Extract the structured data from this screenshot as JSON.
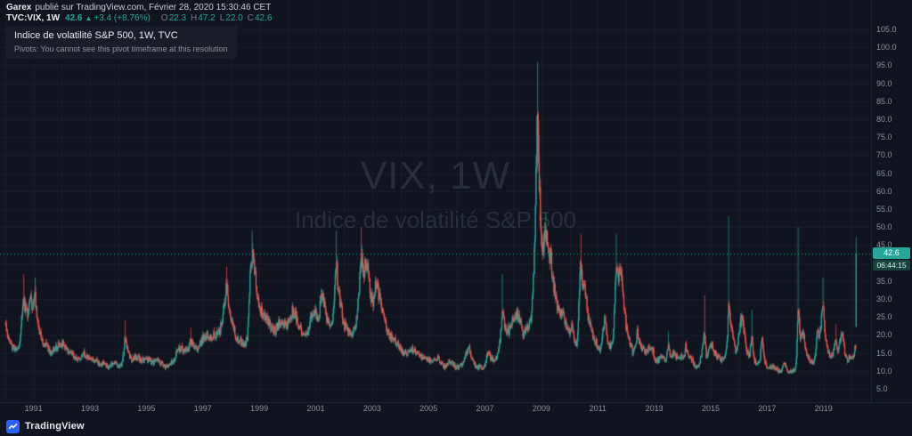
{
  "attribution": {
    "author": "Garex",
    "rest": "publié sur TradingView.com, Février 28, 2020 15:30:46 CET"
  },
  "symbol_line": {
    "symbol": "TVC:VIX, 1W",
    "price": "42.6",
    "arrow": "▲",
    "change": "+3.4 (+8.76%)",
    "ohlc": [
      {
        "label": "O",
        "value": "22.3"
      },
      {
        "label": "H",
        "value": "47.2"
      },
      {
        "label": "L",
        "value": "22.0"
      },
      {
        "label": "C",
        "value": "42.6"
      }
    ]
  },
  "legend": {
    "title": "Indice de volatilité S&P 500, 1W, TVC",
    "pivots_note": "Pivots: You cannot see this pivot timeframe at this resolution"
  },
  "watermark": {
    "line1": "VIX, 1W",
    "line2": "Indice de volatilité S&P 500"
  },
  "price_scale": {
    "ticks": [
      "105.0",
      "100.0",
      "95.0",
      "90.0",
      "85.0",
      "80.0",
      "75.0",
      "70.0",
      "65.0",
      "60.0",
      "55.0",
      "50.0",
      "45.0",
      "40.0",
      "35.0",
      "30.0",
      "25.0",
      "20.0",
      "15.0",
      "10.0",
      "5.0"
    ],
    "last_price_badge": "42.6",
    "countdown": "06:44:15"
  },
  "time_scale": {
    "ticks": [
      "1991",
      "1993",
      "1995",
      "1997",
      "1999",
      "2001",
      "2003",
      "2005",
      "2007",
      "2009",
      "2011",
      "2013",
      "2015",
      "2017",
      "2019"
    ]
  },
  "footer": {
    "brand": "TradingView"
  },
  "colors": {
    "background": "#0f141f",
    "up": "#26a69a",
    "down": "#ef5350",
    "axis_text": "#8b90a0",
    "badge_bg": "#26a69a",
    "badge_text": "#ffffff",
    "countdown_bg": "#17423d",
    "countdown_text": "#d8efec",
    "brand_blue": "#2962ff",
    "watermark": "rgba(197,203,217,0.14)",
    "grid": "rgba(255,255,255,0.04)",
    "border": "#1f2633",
    "header_text": "#c9ceda",
    "header_bright": "#e8eaf0",
    "legend_note": "#8d93a1"
  },
  "chart_data": {
    "type": "candlestick",
    "title": "Indice de volatilité S&P 500 (VIX), weekly",
    "timeframe": "1W",
    "x_range": [
      1990.0,
      2020.3
    ],
    "ylim": [
      5,
      105
    ],
    "y_tick_step": 5,
    "grid": true,
    "price_line": 42.6,
    "up_color": "#26a69a",
    "down_color": "#ef5350",
    "last_candle": {
      "t": 2020.155,
      "o": 22.3,
      "h": 47.2,
      "l": 22.0,
      "c": 42.6
    },
    "anchors": [
      [
        1990.0,
        23
      ],
      [
        1990.12,
        19
      ],
      [
        1990.25,
        17
      ],
      [
        1990.4,
        16
      ],
      [
        1990.5,
        17
      ],
      [
        1990.58,
        24
      ],
      [
        1990.65,
        30
      ],
      [
        1990.72,
        27
      ],
      [
        1990.8,
        26
      ],
      [
        1990.9,
        30
      ],
      [
        1991.0,
        27
      ],
      [
        1991.05,
        32
      ],
      [
        1991.15,
        24
      ],
      [
        1991.3,
        18
      ],
      [
        1991.45,
        17
      ],
      [
        1991.6,
        15
      ],
      [
        1991.75,
        16
      ],
      [
        1991.9,
        17
      ],
      [
        1992.0,
        18
      ],
      [
        1992.15,
        16
      ],
      [
        1992.3,
        15
      ],
      [
        1992.45,
        14
      ],
      [
        1992.6,
        13
      ],
      [
        1992.75,
        15
      ],
      [
        1992.9,
        14
      ],
      [
        1993.05,
        13
      ],
      [
        1993.2,
        13
      ],
      [
        1993.35,
        12
      ],
      [
        1993.5,
        12
      ],
      [
        1993.65,
        11
      ],
      [
        1993.8,
        12
      ],
      [
        1993.95,
        12
      ],
      [
        1994.05,
        11
      ],
      [
        1994.15,
        12
      ],
      [
        1994.25,
        19
      ],
      [
        1994.35,
        15
      ],
      [
        1994.5,
        13
      ],
      [
        1994.65,
        14
      ],
      [
        1994.8,
        13
      ],
      [
        1994.95,
        13
      ],
      [
        1995.1,
        13
      ],
      [
        1995.25,
        12
      ],
      [
        1995.4,
        13
      ],
      [
        1995.55,
        12
      ],
      [
        1995.7,
        11
      ],
      [
        1995.85,
        12
      ],
      [
        1996.0,
        13
      ],
      [
        1996.12,
        16
      ],
      [
        1996.25,
        16
      ],
      [
        1996.4,
        16
      ],
      [
        1996.52,
        16
      ],
      [
        1996.58,
        19
      ],
      [
        1996.7,
        16
      ],
      [
        1996.85,
        16
      ],
      [
        1997.0,
        19
      ],
      [
        1997.12,
        20
      ],
      [
        1997.25,
        19
      ],
      [
        1997.4,
        20
      ],
      [
        1997.55,
        20
      ],
      [
        1997.68,
        23
      ],
      [
        1997.8,
        31
      ],
      [
        1997.85,
        33
      ],
      [
        1997.95,
        28
      ],
      [
        1998.05,
        23
      ],
      [
        1998.2,
        19
      ],
      [
        1998.35,
        18
      ],
      [
        1998.5,
        17
      ],
      [
        1998.6,
        20
      ],
      [
        1998.66,
        32
      ],
      [
        1998.72,
        42
      ],
      [
        1998.8,
        41
      ],
      [
        1998.88,
        36
      ],
      [
        1999.0,
        27
      ],
      [
        1999.12,
        26
      ],
      [
        1999.25,
        25
      ],
      [
        1999.4,
        23
      ],
      [
        1999.55,
        21
      ],
      [
        1999.7,
        23
      ],
      [
        1999.85,
        23
      ],
      [
        2000.0,
        23
      ],
      [
        2000.1,
        25
      ],
      [
        2000.2,
        27
      ],
      [
        2000.3,
        25
      ],
      [
        2000.45,
        22
      ],
      [
        2000.6,
        19
      ],
      [
        2000.75,
        21
      ],
      [
        2000.85,
        25
      ],
      [
        2001.0,
        26
      ],
      [
        2001.1,
        24
      ],
      [
        2001.2,
        31
      ],
      [
        2001.3,
        29
      ],
      [
        2001.4,
        25
      ],
      [
        2001.5,
        22
      ],
      [
        2001.6,
        24
      ],
      [
        2001.7,
        35
      ],
      [
        2001.73,
        43
      ],
      [
        2001.8,
        33
      ],
      [
        2001.9,
        28
      ],
      [
        2002.0,
        23
      ],
      [
        2002.15,
        21
      ],
      [
        2002.3,
        20
      ],
      [
        2002.45,
        24
      ],
      [
        2002.55,
        33
      ],
      [
        2002.62,
        42
      ],
      [
        2002.7,
        37
      ],
      [
        2002.78,
        41
      ],
      [
        2002.85,
        38
      ],
      [
        2002.95,
        31
      ],
      [
        2003.05,
        29
      ],
      [
        2003.12,
        34
      ],
      [
        2003.2,
        33
      ],
      [
        2003.3,
        29
      ],
      [
        2003.4,
        25
      ],
      [
        2003.55,
        21
      ],
      [
        2003.7,
        19
      ],
      [
        2003.85,
        18
      ],
      [
        2004.0,
        16
      ],
      [
        2004.15,
        15
      ],
      [
        2004.3,
        15
      ],
      [
        2004.45,
        16
      ],
      [
        2004.6,
        15
      ],
      [
        2004.75,
        14
      ],
      [
        2004.9,
        13
      ],
      [
        2005.05,
        13
      ],
      [
        2005.15,
        12
      ],
      [
        2005.28,
        14
      ],
      [
        2005.4,
        13
      ],
      [
        2005.55,
        11
      ],
      [
        2005.7,
        12
      ],
      [
        2005.82,
        13
      ],
      [
        2005.95,
        11
      ],
      [
        2006.1,
        11
      ],
      [
        2006.25,
        12
      ],
      [
        2006.42,
        17
      ],
      [
        2006.55,
        13
      ],
      [
        2006.7,
        11
      ],
      [
        2006.85,
        11
      ],
      [
        2007.0,
        11
      ],
      [
        2007.1,
        15
      ],
      [
        2007.18,
        14
      ],
      [
        2007.3,
        13
      ],
      [
        2007.45,
        14
      ],
      [
        2007.55,
        19
      ],
      [
        2007.62,
        26
      ],
      [
        2007.72,
        22
      ],
      [
        2007.85,
        21
      ],
      [
        2007.95,
        24
      ],
      [
        2008.05,
        25
      ],
      [
        2008.15,
        26
      ],
      [
        2008.25,
        24
      ],
      [
        2008.35,
        20
      ],
      [
        2008.45,
        21
      ],
      [
        2008.55,
        23
      ],
      [
        2008.65,
        25
      ],
      [
        2008.72,
        34
      ],
      [
        2008.78,
        50
      ],
      [
        2008.83,
        68
      ],
      [
        2008.87,
        79
      ],
      [
        2008.93,
        63
      ],
      [
        2009.0,
        44
      ],
      [
        2009.08,
        44
      ],
      [
        2009.15,
        48
      ],
      [
        2009.25,
        45
      ],
      [
        2009.35,
        41
      ],
      [
        2009.45,
        34
      ],
      [
        2009.55,
        28
      ],
      [
        2009.65,
        26
      ],
      [
        2009.78,
        25
      ],
      [
        2009.9,
        22
      ],
      [
        2010.0,
        21
      ],
      [
        2010.08,
        23
      ],
      [
        2010.18,
        18
      ],
      [
        2010.28,
        17
      ],
      [
        2010.36,
        34
      ],
      [
        2010.4,
        40
      ],
      [
        2010.48,
        31
      ],
      [
        2010.55,
        34
      ],
      [
        2010.65,
        25
      ],
      [
        2010.75,
        22
      ],
      [
        2010.88,
        19
      ],
      [
        2011.0,
        17
      ],
      [
        2011.1,
        16
      ],
      [
        2011.2,
        22
      ],
      [
        2011.27,
        25
      ],
      [
        2011.35,
        18
      ],
      [
        2011.45,
        17
      ],
      [
        2011.55,
        19
      ],
      [
        2011.62,
        32
      ],
      [
        2011.66,
        42
      ],
      [
        2011.73,
        36
      ],
      [
        2011.8,
        41
      ],
      [
        2011.88,
        31
      ],
      [
        2011.95,
        27
      ],
      [
        2012.05,
        20
      ],
      [
        2012.15,
        18
      ],
      [
        2012.25,
        15
      ],
      [
        2012.35,
        18
      ],
      [
        2012.42,
        21
      ],
      [
        2012.5,
        17
      ],
      [
        2012.6,
        16
      ],
      [
        2012.72,
        15
      ],
      [
        2012.85,
        17
      ],
      [
        2012.95,
        16
      ],
      [
        2013.05,
        13
      ],
      [
        2013.18,
        13
      ],
      [
        2013.3,
        14
      ],
      [
        2013.42,
        13
      ],
      [
        2013.5,
        17
      ],
      [
        2013.6,
        14
      ],
      [
        2013.72,
        15
      ],
      [
        2013.85,
        13
      ],
      [
        2013.95,
        14
      ],
      [
        2014.05,
        13
      ],
      [
        2014.12,
        17
      ],
      [
        2014.22,
        14
      ],
      [
        2014.35,
        13
      ],
      [
        2014.5,
        11
      ],
      [
        2014.6,
        12
      ],
      [
        2014.7,
        15
      ],
      [
        2014.78,
        21
      ],
      [
        2014.85,
        14
      ],
      [
        2014.95,
        16
      ],
      [
        2015.05,
        17
      ],
      [
        2015.15,
        15
      ],
      [
        2015.25,
        14
      ],
      [
        2015.38,
        13
      ],
      [
        2015.5,
        13
      ],
      [
        2015.6,
        19
      ],
      [
        2015.64,
        28
      ],
      [
        2015.72,
        24
      ],
      [
        2015.82,
        19
      ],
      [
        2015.9,
        15
      ],
      [
        2015.98,
        18
      ],
      [
        2016.05,
        23
      ],
      [
        2016.12,
        25
      ],
      [
        2016.2,
        20
      ],
      [
        2016.3,
        15
      ],
      [
        2016.38,
        14
      ],
      [
        2016.46,
        20
      ],
      [
        2016.55,
        13
      ],
      [
        2016.65,
        12
      ],
      [
        2016.75,
        13
      ],
      [
        2016.83,
        21
      ],
      [
        2016.9,
        13
      ],
      [
        2017.0,
        11
      ],
      [
        2017.12,
        11
      ],
      [
        2017.25,
        11
      ],
      [
        2017.4,
        10
      ],
      [
        2017.5,
        10
      ],
      [
        2017.62,
        12
      ],
      [
        2017.75,
        10
      ],
      [
        2017.88,
        10
      ],
      [
        2018.0,
        10
      ],
      [
        2018.05,
        13
      ],
      [
        2018.1,
        29
      ],
      [
        2018.18,
        19
      ],
      [
        2018.28,
        21
      ],
      [
        2018.4,
        15
      ],
      [
        2018.5,
        13
      ],
      [
        2018.6,
        12
      ],
      [
        2018.7,
        13
      ],
      [
        2018.78,
        21
      ],
      [
        2018.85,
        19
      ],
      [
        2018.92,
        23
      ],
      [
        2018.98,
        30
      ],
      [
        2019.05,
        20
      ],
      [
        2019.12,
        17
      ],
      [
        2019.2,
        15
      ],
      [
        2019.3,
        14
      ],
      [
        2019.38,
        16
      ],
      [
        2019.44,
        19
      ],
      [
        2019.52,
        15
      ],
      [
        2019.6,
        19
      ],
      [
        2019.66,
        21
      ],
      [
        2019.75,
        16
      ],
      [
        2019.85,
        13
      ],
      [
        2019.92,
        14
      ],
      [
        2020.0,
        13
      ],
      [
        2020.06,
        14
      ],
      [
        2020.1,
        15
      ],
      [
        2020.13,
        17
      ]
    ],
    "spike_highs": [
      [
        1990.65,
        37
      ],
      [
        1991.05,
        36
      ],
      [
        1994.25,
        24
      ],
      [
        1996.58,
        22
      ],
      [
        1997.85,
        39
      ],
      [
        1998.75,
        49
      ],
      [
        2001.73,
        49
      ],
      [
        2002.62,
        50
      ],
      [
        2003.12,
        36
      ],
      [
        2007.62,
        37
      ],
      [
        2008.83,
        81
      ],
      [
        2008.87,
        96
      ],
      [
        2009.15,
        54
      ],
      [
        2010.4,
        48
      ],
      [
        2011.66,
        48
      ],
      [
        2013.5,
        21
      ],
      [
        2014.78,
        31
      ],
      [
        2015.64,
        53
      ],
      [
        2016.46,
        27
      ],
      [
        2018.1,
        50
      ],
      [
        2018.98,
        36
      ],
      [
        2019.44,
        23
      ]
    ]
  }
}
